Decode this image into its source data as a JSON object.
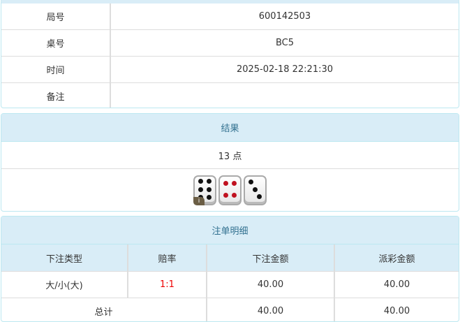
{
  "info": {
    "rows": [
      {
        "label": "局号",
        "value": "600142503"
      },
      {
        "label": "桌号",
        "value": "BC5"
      },
      {
        "label": "时间",
        "value": "2025-02-18 22:21:30"
      },
      {
        "label": "备注",
        "value": ""
      }
    ]
  },
  "result": {
    "title": "结果",
    "points": "13 点",
    "dice": [
      6,
      4,
      3
    ],
    "badge": "i"
  },
  "bets": {
    "title": "注单明细",
    "headers": [
      "下注类型",
      "赔率",
      "下注金额",
      "派彩金额"
    ],
    "rows": [
      {
        "type": "大/小(大)",
        "odds": "1:1",
        "amount": "40.00",
        "payout": "40.00"
      }
    ],
    "total": {
      "label": "总计",
      "amount": "40.00",
      "payout": "40.00"
    }
  },
  "colors": {
    "header_bg": "#d9edf7",
    "header_text": "#31708f",
    "odds": "#ee0000"
  }
}
